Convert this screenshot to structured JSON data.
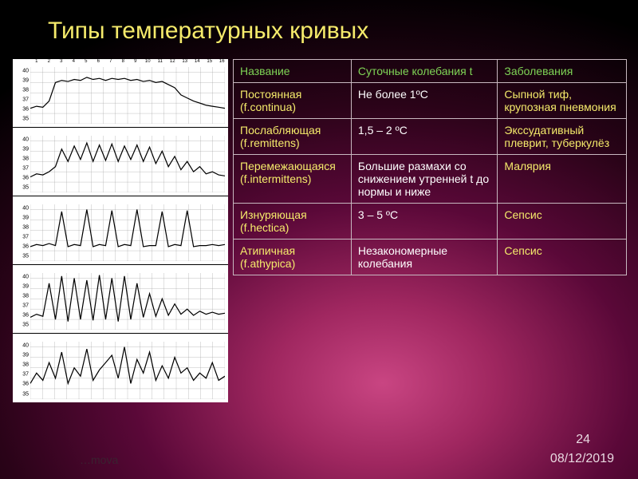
{
  "title": "Типы температурных кривых",
  "footer": {
    "num": "24",
    "date": "08/12/2019",
    "copy": "…mova"
  },
  "table": {
    "headers": [
      "Название",
      "Суточные колебания t",
      "Заболевания"
    ],
    "rows": [
      {
        "name": "Постоянная (f.continua)",
        "fluct": "Не более 1ºС",
        "disease": "Сыпной тиф, крупозная пневмония"
      },
      {
        "name": "Послабляющая (f.remittens)",
        "fluct": "1,5 – 2 ºС",
        "disease": "Экссудативный плеврит, туберкулёз"
      },
      {
        "name": "Перемежающаяся (f.intermittens)",
        "fluct": "Большие размахи со снижением утренней t до нормы и ниже",
        "disease": "Малярия"
      },
      {
        "name": "Изнуряющая (f.hectica)",
        "fluct": "3 – 5 ºС",
        "disease": "Сепсис"
      },
      {
        "name": "Атипичная (f.athypica)",
        "fluct": "Незакономерные колебания",
        "disease": "Сепсис"
      }
    ]
  },
  "charts": {
    "y_ticks": [
      40,
      39,
      38,
      37,
      36,
      35
    ],
    "y_min": 35,
    "y_max": 40.5,
    "x_days": 16,
    "x_header": [
      "1",
      "2",
      "3",
      "4",
      "5",
      "6",
      "7",
      "8",
      "9",
      "10",
      "11",
      "12",
      "13",
      "14",
      "15",
      "16"
    ],
    "series": [
      {
        "name": "continua",
        "values": [
          36.5,
          36.7,
          36.6,
          37.2,
          39.0,
          39.2,
          39.1,
          39.3,
          39.2,
          39.5,
          39.3,
          39.4,
          39.2,
          39.4,
          39.3,
          39.4,
          39.2,
          39.3,
          39.1,
          39.2,
          39.0,
          39.1,
          38.8,
          38.5,
          37.8,
          37.5,
          37.2,
          37.0,
          36.8,
          36.7,
          36.6,
          36.5
        ]
      },
      {
        "name": "remittens",
        "values": [
          36.5,
          36.8,
          36.7,
          37.0,
          37.5,
          39.2,
          38.0,
          39.5,
          38.2,
          39.8,
          38.0,
          39.6,
          38.1,
          39.7,
          38.0,
          39.5,
          38.2,
          39.6,
          38.0,
          39.4,
          37.8,
          39.0,
          37.5,
          38.5,
          37.2,
          38.0,
          37.0,
          37.5,
          36.8,
          37.0,
          36.7,
          36.6
        ]
      },
      {
        "name": "intermittens",
        "values": [
          36.4,
          36.6,
          36.5,
          36.7,
          36.5,
          39.8,
          36.4,
          36.6,
          36.5,
          40.0,
          36.4,
          36.6,
          36.5,
          39.9,
          36.4,
          36.6,
          36.5,
          40.0,
          36.4,
          36.5,
          36.5,
          39.8,
          36.4,
          36.6,
          36.5,
          39.9,
          36.4,
          36.5,
          36.5,
          36.6,
          36.5,
          36.6
        ]
      },
      {
        "name": "hectica",
        "values": [
          36.2,
          36.5,
          36.3,
          39.5,
          36.0,
          40.2,
          35.8,
          40.0,
          36.0,
          39.8,
          35.9,
          40.3,
          36.0,
          40.0,
          35.8,
          40.2,
          36.0,
          39.5,
          36.2,
          38.5,
          36.3,
          38.0,
          36.4,
          37.5,
          36.5,
          37.0,
          36.4,
          36.8,
          36.5,
          36.7,
          36.5,
          36.6
        ]
      },
      {
        "name": "athypica",
        "values": [
          36.5,
          37.5,
          36.8,
          38.5,
          37.0,
          39.5,
          36.5,
          38.0,
          37.2,
          39.8,
          36.8,
          37.8,
          38.5,
          39.2,
          37.0,
          40.0,
          36.5,
          38.8,
          37.5,
          39.5,
          36.8,
          38.2,
          37.0,
          39.0,
          37.5,
          38.0,
          36.8,
          37.5,
          37.0,
          38.5,
          36.8,
          37.2
        ]
      }
    ],
    "grid_color": "#999999",
    "line_color": "#000000",
    "bg_color": "#ffffff"
  },
  "colors": {
    "title": "#f5eb6b",
    "header": "#7fd456",
    "name_col": "#f5eb6b",
    "fluct_col": "#ffffff",
    "disease_col": "#f5eb6b",
    "border": "#c8b8c0"
  }
}
